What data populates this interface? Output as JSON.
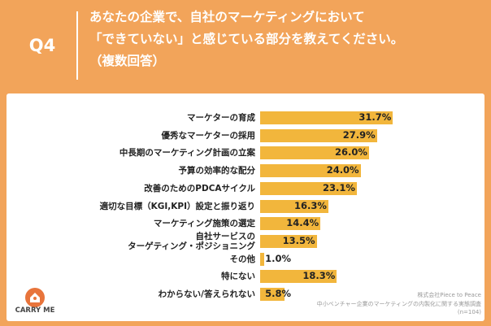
{
  "header": {
    "question": "Q4",
    "title": "あなたの企業で、自社のマーケティングにおいて\n「できていない」と感じている部分を教えてください。\n（複数回答）"
  },
  "chart_data": {
    "type": "bar",
    "orientation": "horizontal",
    "color": "#f2b63c",
    "categories": [
      "マーケターの育成",
      "優秀なマーケターの採用",
      "中長期のマーケティング計画の立案",
      "予算の効率的な配分",
      "改善のためのPDCAサイクル",
      "適切な目標（KGI,KPI）設定と振り返り",
      "マーケティング施策の選定",
      "自社サービスの\nターゲティング・ポジショニング",
      "その他",
      "特にない",
      "わからない/答えられない"
    ],
    "values": [
      31.7,
      27.9,
      26.0,
      24.0,
      23.1,
      16.3,
      14.4,
      13.5,
      1.0,
      18.3,
      5.8
    ],
    "value_labels": [
      "31.7%",
      "27.9%",
      "26.0%",
      "24.0%",
      "23.1%",
      "16.3%",
      "14.4%",
      "13.5%",
      "1.0%",
      "18.3%",
      "5.8%"
    ]
  },
  "footer": {
    "logo": "CARRY ME",
    "source": [
      "株式会社Piece to Peace",
      "中小ベンチャー企業のマーケティングの内製化に関する実態調査",
      "(n=104)"
    ]
  }
}
